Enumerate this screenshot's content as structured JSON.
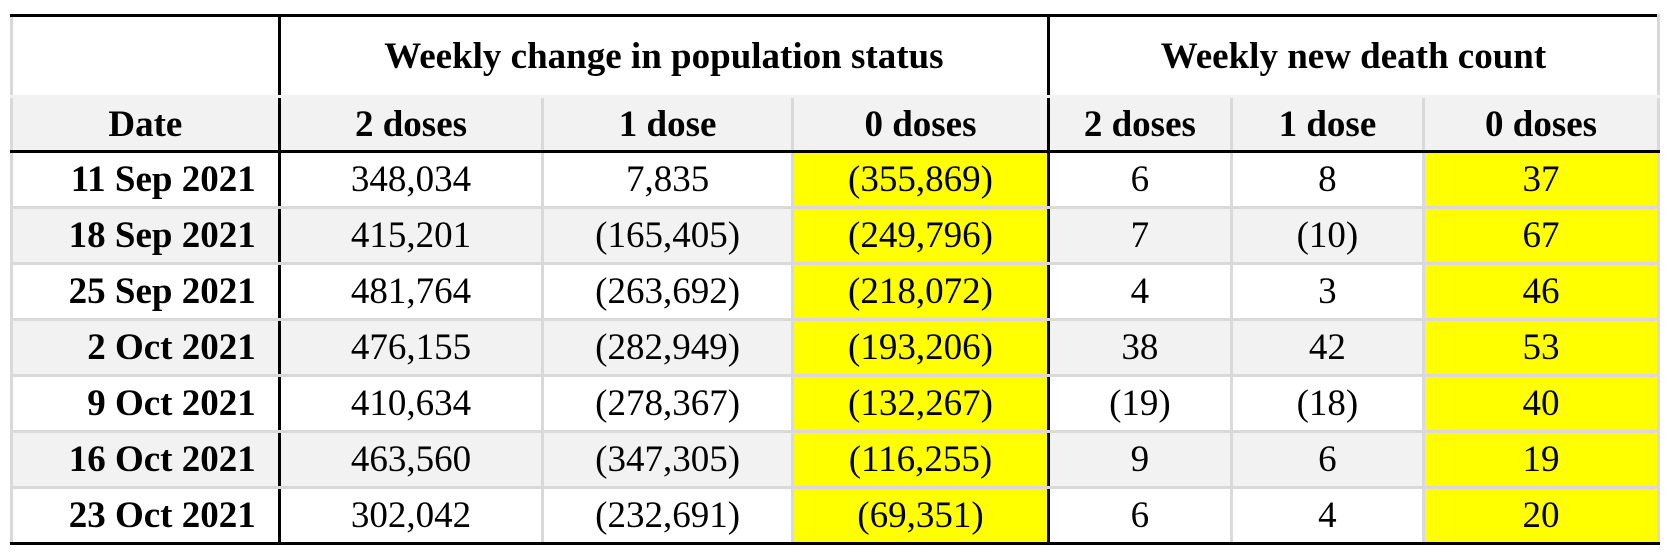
{
  "headers": {
    "group1": "Weekly change in population status",
    "group2": "Weekly new death count",
    "date": "Date",
    "cols": [
      "2 doses",
      "1 dose",
      "0 doses",
      "2 doses",
      "1 dose",
      "0 doses"
    ]
  },
  "rows": [
    {
      "date": "11 Sep 2021",
      "cells": [
        "348,034",
        "7,835",
        "(355,869)",
        "6",
        "8",
        "37"
      ]
    },
    {
      "date": "18 Sep 2021",
      "cells": [
        "415,201",
        "(165,405)",
        "(249,796)",
        "7",
        "(10)",
        "67"
      ]
    },
    {
      "date": "25 Sep 2021",
      "cells": [
        "481,764",
        "(263,692)",
        "(218,072)",
        "4",
        "3",
        "46"
      ]
    },
    {
      "date": "2 Oct 2021",
      "cells": [
        "476,155",
        "(282,949)",
        "(193,206)",
        "38",
        "42",
        "53"
      ]
    },
    {
      "date": "9 Oct 2021",
      "cells": [
        "410,634",
        "(278,367)",
        "(132,267)",
        "(19)",
        "(18)",
        "40"
      ]
    },
    {
      "date": "16 Oct 2021",
      "cells": [
        "463,560",
        "(347,305)",
        "(116,255)",
        "9",
        "6",
        "19"
      ]
    },
    {
      "date": "23 Oct 2021",
      "cells": [
        "302,042",
        "(232,691)",
        "(69,351)",
        "6",
        "4",
        "20"
      ]
    }
  ],
  "colors": {
    "highlight": "#ffff00",
    "shade": "#f2f2f2",
    "border": "#000000"
  }
}
